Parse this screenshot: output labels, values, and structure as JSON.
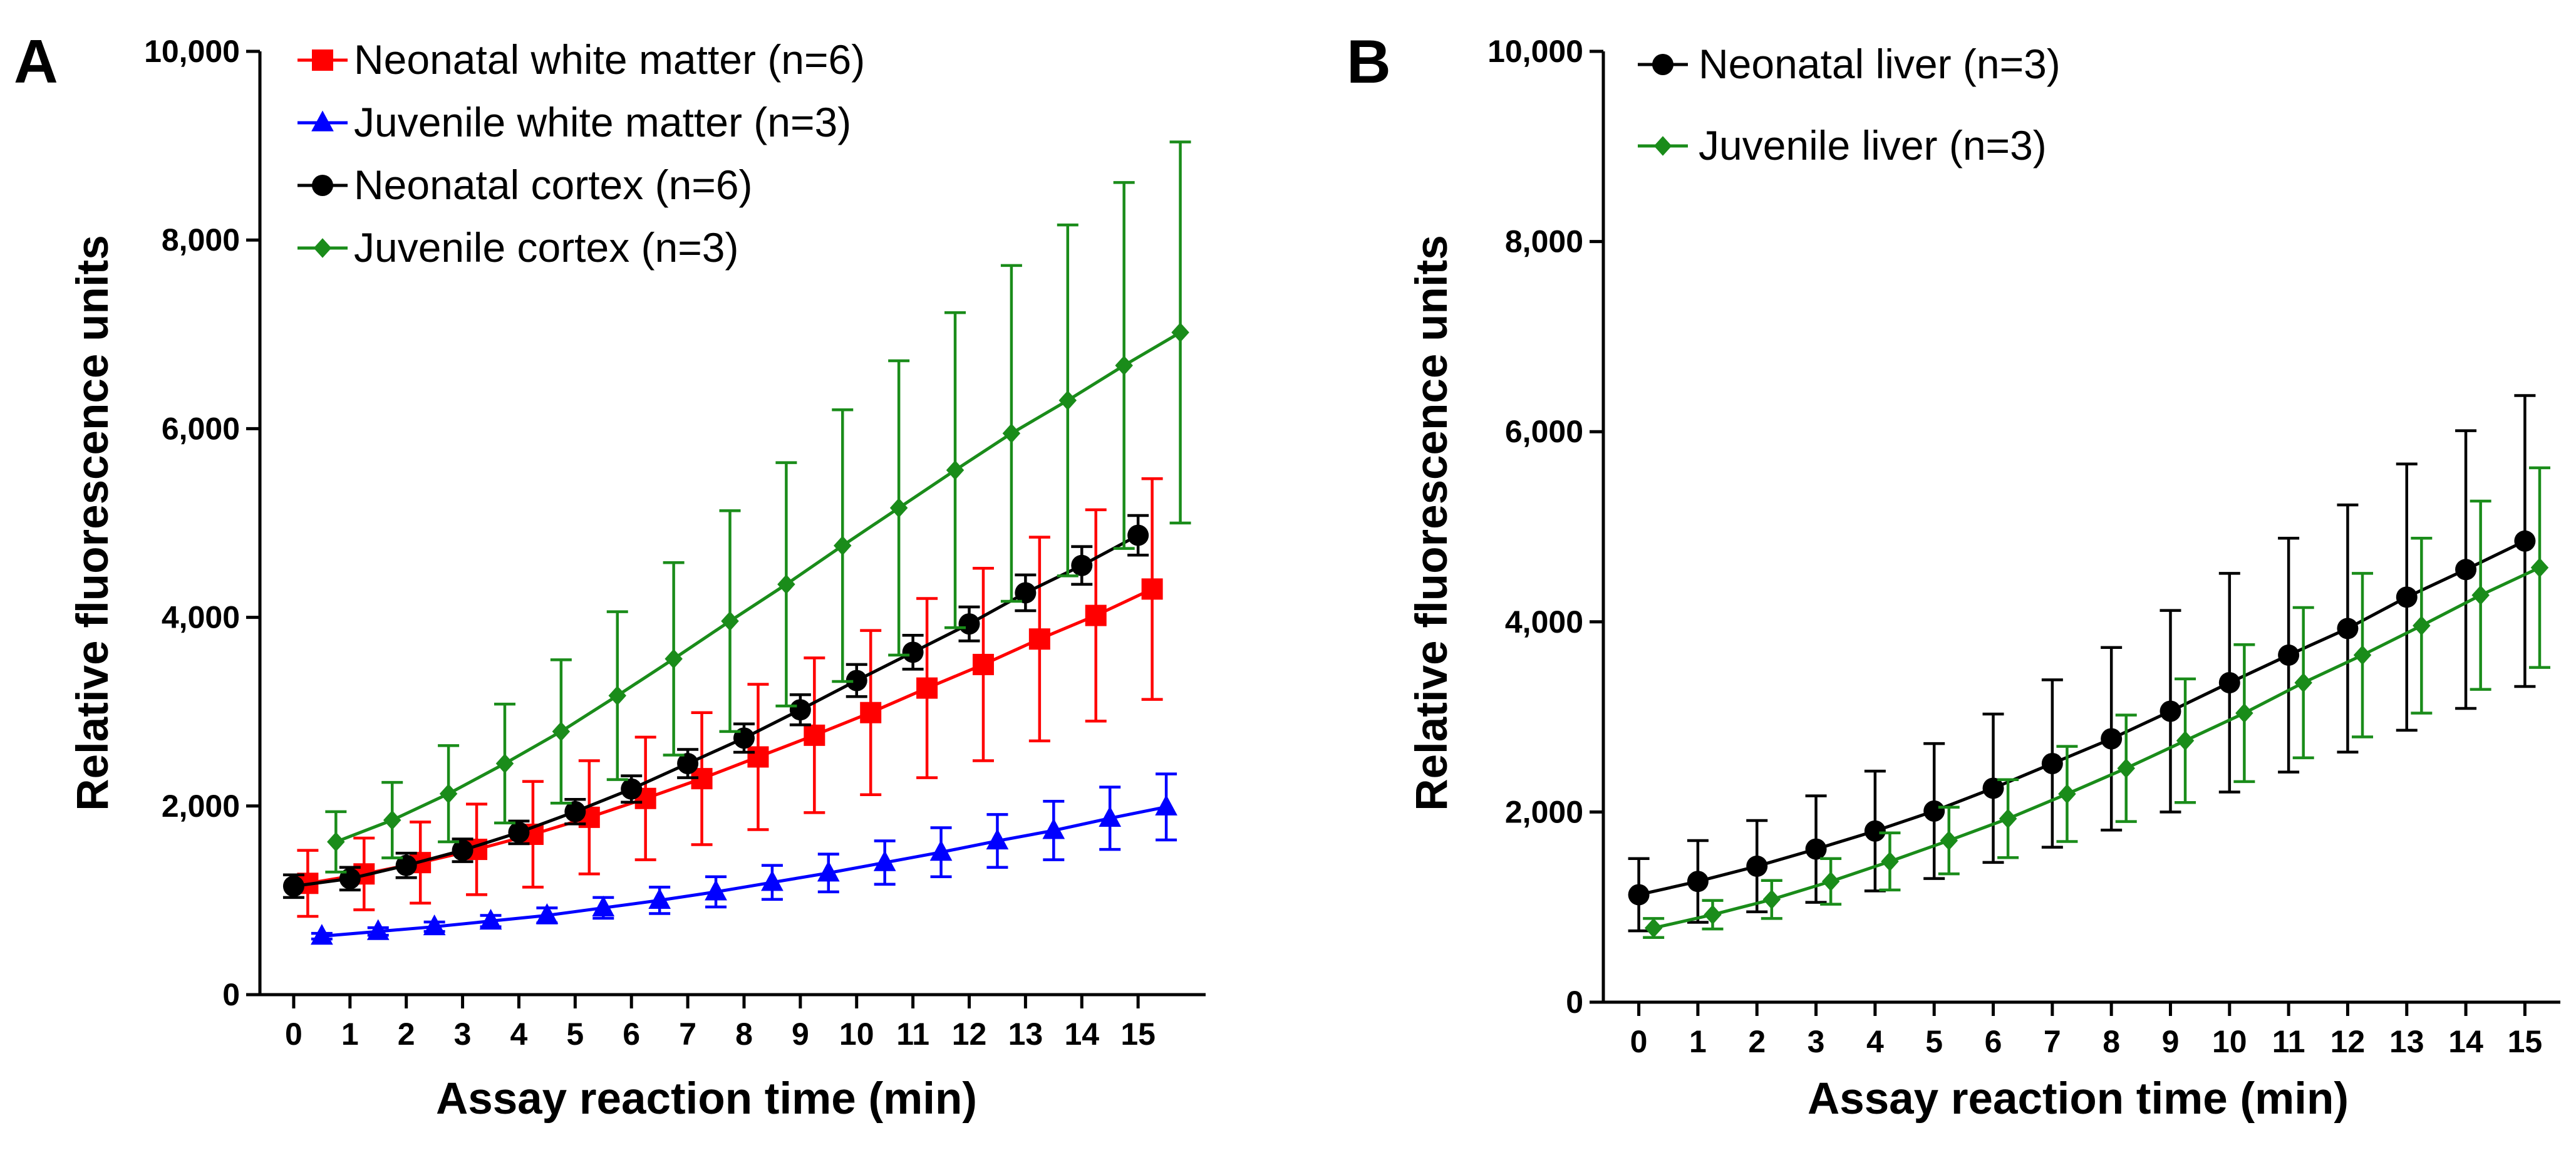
{
  "chart_data": [
    {
      "panel_label": "A",
      "type": "line",
      "xlabel": "Assay reaction time (min)",
      "ylabel": "Relative fluorescence units",
      "xlim": [
        -0.6,
        16.2
      ],
      "ylim": [
        0,
        10000
      ],
      "x_ticks": [
        0,
        1,
        2,
        3,
        4,
        5,
        6,
        7,
        8,
        9,
        10,
        11,
        12,
        13,
        14,
        15
      ],
      "x_tick_labels": [
        "0",
        "1",
        "2",
        "3",
        "4",
        "5",
        "6",
        "7",
        "8",
        "9",
        "10",
        "11",
        "12",
        "13",
        "14",
        "15"
      ],
      "y_ticks": [
        0,
        2000,
        4000,
        6000,
        8000,
        10000
      ],
      "y_tick_labels": [
        "0",
        "2,000",
        "4,000",
        "6,000",
        "8,000",
        "10,000"
      ],
      "grid": false,
      "legend_position": "top-left",
      "series": [
        {
          "name": "Neonatal white matter (n=6)",
          "color": "#ff0000",
          "marker": "square",
          "x": [
            0.25,
            1.25,
            2.25,
            3.25,
            4.25,
            5.25,
            6.25,
            7.25,
            8.25,
            9.25,
            10.25,
            11.25,
            12.25,
            13.25,
            14.25,
            15.25
          ],
          "y": [
            1180,
            1280,
            1400,
            1540,
            1700,
            1880,
            2080,
            2290,
            2520,
            2750,
            2990,
            3250,
            3500,
            3770,
            4020,
            4300
          ],
          "err": [
            350,
            380,
            430,
            480,
            560,
            600,
            650,
            700,
            770,
            820,
            870,
            950,
            1020,
            1080,
            1120,
            1170
          ]
        },
        {
          "name": "Juvenile white matter (n=3)",
          "color": "#0000ff",
          "marker": "triangle",
          "x": [
            0.5,
            1.5,
            2.5,
            3.5,
            4.5,
            5.5,
            6.5,
            7.5,
            8.5,
            9.5,
            10.5,
            11.5,
            12.5,
            13.5,
            14.5,
            15.5
          ],
          "y": [
            620,
            670,
            720,
            780,
            840,
            920,
            1000,
            1090,
            1190,
            1290,
            1400,
            1510,
            1630,
            1740,
            1870,
            1990
          ],
          "err": [
            30,
            40,
            50,
            60,
            80,
            110,
            140,
            160,
            180,
            200,
            230,
            260,
            280,
            310,
            330,
            350
          ]
        },
        {
          "name": "Neonatal cortex  (n=6)",
          "color": "#000000",
          "marker": "circle",
          "x": [
            0,
            1,
            2,
            3,
            4,
            5,
            6,
            7,
            8,
            9,
            10,
            11,
            12,
            13,
            14,
            15
          ],
          "y": [
            1150,
            1230,
            1370,
            1530,
            1720,
            1940,
            2180,
            2450,
            2720,
            3020,
            3330,
            3630,
            3930,
            4260,
            4550,
            4870
          ],
          "err": [
            120,
            120,
            130,
            120,
            120,
            130,
            140,
            150,
            150,
            160,
            170,
            180,
            180,
            190,
            200,
            210
          ]
        },
        {
          "name": "Juvenile cortex (n=3)",
          "color": "#1a8c1a",
          "marker": "diamond",
          "x": [
            0.75,
            1.75,
            2.75,
            3.75,
            4.75,
            5.75,
            6.75,
            7.75,
            8.75,
            9.75,
            10.75,
            11.75,
            12.75,
            13.75,
            14.75,
            15.75
          ],
          "y": [
            1620,
            1850,
            2130,
            2450,
            2790,
            3170,
            3560,
            3960,
            4350,
            4760,
            5160,
            5560,
            5950,
            6300,
            6670,
            7020
          ],
          "err": [
            320,
            400,
            510,
            630,
            760,
            890,
            1020,
            1170,
            1290,
            1440,
            1560,
            1670,
            1780,
            1860,
            1940,
            2020
          ]
        }
      ]
    },
    {
      "panel_label": "B",
      "type": "line",
      "xlabel": "Assay reaction time (min)",
      "ylabel": "Relative fluorescence units",
      "xlim": [
        -0.6,
        15.6
      ],
      "ylim": [
        0,
        10000
      ],
      "x_ticks": [
        0,
        1,
        2,
        3,
        4,
        5,
        6,
        7,
        8,
        9,
        10,
        11,
        12,
        13,
        14,
        15
      ],
      "x_tick_labels": [
        "0",
        "1",
        "2",
        "3",
        "4",
        "5",
        "6",
        "7",
        "8",
        "9",
        "10",
        "11",
        "12",
        "13",
        "14",
        "15"
      ],
      "y_ticks": [
        0,
        2000,
        4000,
        6000,
        8000,
        10000
      ],
      "y_tick_labels": [
        "0",
        "2,000",
        "4,000",
        "6,000",
        "8,000",
        "10,000"
      ],
      "grid": false,
      "legend_position": "top-left",
      "series": [
        {
          "name": "Neonatal liver (n=3)",
          "color": "#000000",
          "marker": "circle",
          "x": [
            0,
            1,
            2,
            3,
            4,
            5,
            6,
            7,
            8,
            9,
            10,
            11,
            12,
            13,
            14,
            15
          ],
          "y": [
            1130,
            1270,
            1430,
            1610,
            1800,
            2010,
            2250,
            2510,
            2770,
            3060,
            3360,
            3650,
            3930,
            4260,
            4550,
            4850
          ],
          "err": [
            380,
            430,
            480,
            560,
            630,
            710,
            780,
            880,
            960,
            1060,
            1150,
            1230,
            1300,
            1400,
            1460,
            1530
          ]
        },
        {
          "name": "Juvenile liver (n=3)",
          "color": "#1a8c1a",
          "marker": "diamond",
          "x": [
            0.25,
            1.25,
            2.25,
            3.25,
            4.25,
            5.25,
            6.25,
            7.25,
            8.25,
            9.25,
            10.25,
            11.25,
            12.25,
            13.25,
            14.25,
            15.25
          ],
          "y": [
            780,
            920,
            1080,
            1270,
            1480,
            1700,
            1930,
            2190,
            2460,
            2750,
            3040,
            3360,
            3650,
            3960,
            4280,
            4570
          ],
          "err": [
            100,
            150,
            200,
            240,
            300,
            350,
            410,
            500,
            560,
            650,
            720,
            790,
            860,
            920,
            990,
            1050
          ]
        }
      ]
    }
  ]
}
